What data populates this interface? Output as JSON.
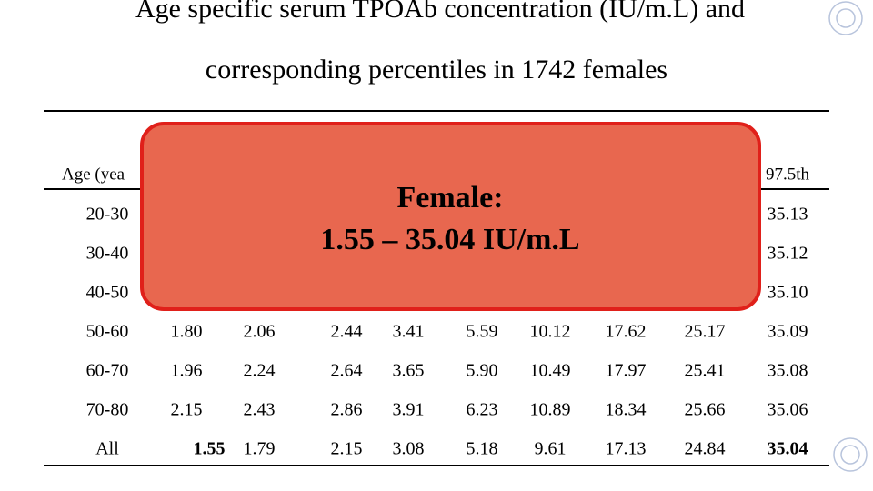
{
  "title": {
    "line1": "Age specific serum TPOAb concentration (IU/m.L) and",
    "line2": "corresponding percentiles in 1742 females"
  },
  "table": {
    "header": [
      "Age (yea",
      "97.5th"
    ],
    "rows": [
      [
        "20-30",
        "35.13"
      ],
      [
        "30-40",
        "35.12"
      ],
      [
        "40-50",
        "35.10"
      ],
      [
        "50-60",
        "1.80",
        "2.06",
        "2.44",
        "3.41",
        "5.59",
        "10.12",
        "17.62",
        "25.17",
        "35.09"
      ],
      [
        "60-70",
        "1.96",
        "2.24",
        "2.64",
        "3.65",
        "5.90",
        "10.49",
        "17.97",
        "25.41",
        "35.08"
      ],
      [
        "70-80",
        "2.15",
        "2.43",
        "2.86",
        "3.91",
        "6.23",
        "10.89",
        "18.34",
        "25.66",
        "35.06"
      ],
      [
        "All",
        "1.55",
        "1.79",
        "2.15",
        "3.08",
        "5.18",
        "9.61",
        "17.13",
        "24.84",
        "35.04"
      ]
    ]
  },
  "overlay": {
    "line1": "Female:",
    "line2": "1.55 – 35.04  IU/m.L"
  }
}
